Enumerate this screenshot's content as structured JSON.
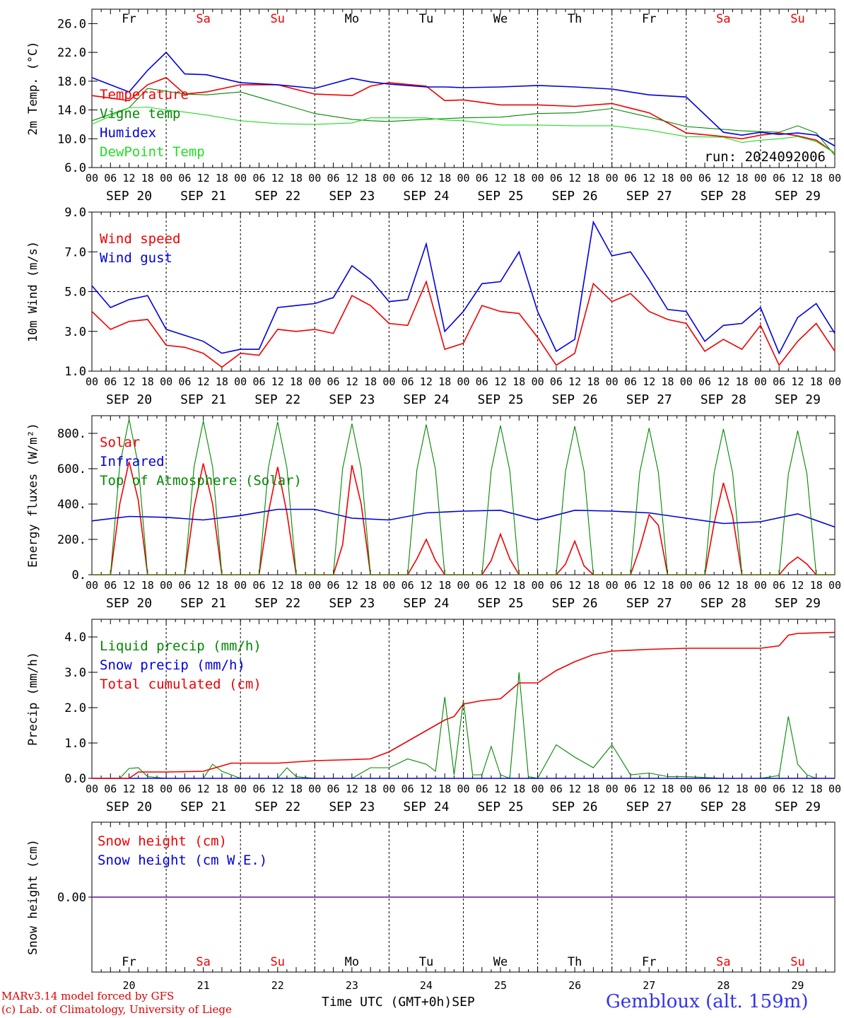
{
  "footer": {
    "credit_line1": "MARv3.14 model forced by GFS",
    "credit_line2": "(c) Lab. of Climatology, University of Liege",
    "xaxis_title": "Time UTC (GMT+0h)",
    "month": "SEP",
    "station": "Gembloux (alt. 159m)",
    "run_label": "run: 2024092006"
  },
  "colors": {
    "red": "#ee0000",
    "green": "#008800",
    "blue": "#0000dd",
    "lightgreen": "#22dd22",
    "purple": "#7733aa",
    "weekday": "#000000",
    "weekend": "#ee0000"
  },
  "days": [
    {
      "abbr": "Fr",
      "date": "SEP 20",
      "num": "20",
      "weekend": false
    },
    {
      "abbr": "Sa",
      "date": "SEP 21",
      "num": "21",
      "weekend": true
    },
    {
      "abbr": "Su",
      "date": "SEP 22",
      "num": "22",
      "weekend": true
    },
    {
      "abbr": "Mo",
      "date": "SEP 23",
      "num": "23",
      "weekend": false
    },
    {
      "abbr": "Tu",
      "date": "SEP 24",
      "num": "24",
      "weekend": false
    },
    {
      "abbr": "We",
      "date": "SEP 25",
      "num": "25",
      "weekend": false
    },
    {
      "abbr": "Th",
      "date": "SEP 26",
      "num": "26",
      "weekend": false
    },
    {
      "abbr": "Fr",
      "date": "SEP 27",
      "num": "27",
      "weekend": false
    },
    {
      "abbr": "Sa",
      "date": "SEP 28",
      "num": "28",
      "weekend": true
    },
    {
      "abbr": "Su",
      "date": "SEP 29",
      "num": "29",
      "weekend": true
    }
  ],
  "hour_ticks": [
    "00",
    "06",
    "12",
    "18"
  ],
  "end_tick": "00",
  "chart_data": [
    {
      "id": "temperature",
      "type": "line",
      "ylabel": "2m Temp. (°C)",
      "ylim": [
        6,
        28
      ],
      "yticks": [
        "6.0",
        "10.0",
        "14.0",
        "18.0",
        "22.0",
        "26.0"
      ],
      "x_unit": "hours since SEP 20 00 UTC",
      "show_day_abbr_top": true,
      "series": [
        {
          "name": "Temperature",
          "color": "red",
          "x": [
            0,
            12,
            18,
            24,
            30,
            37,
            48,
            60,
            72,
            84,
            90,
            96,
            108,
            114,
            120,
            132,
            144,
            156,
            168,
            180,
            192,
            204,
            210,
            216,
            222,
            228,
            234,
            240
          ],
          "y": [
            16,
            15.3,
            17.5,
            18.5,
            16.2,
            16.5,
            17.5,
            17.5,
            16.2,
            16,
            17.3,
            17.8,
            17.3,
            15.3,
            15.4,
            14.7,
            14.7,
            14.5,
            14.9,
            13.6,
            10.8,
            10.3,
            10,
            10.5,
            10.8,
            10.4,
            9.8,
            8
          ]
        },
        {
          "name": "Vigne temp",
          "color": "green",
          "x": [
            0,
            12,
            18,
            24,
            30,
            37,
            48,
            60,
            72,
            84,
            90,
            96,
            108,
            114,
            120,
            132,
            144,
            156,
            168,
            180,
            192,
            204,
            210,
            216,
            222,
            228,
            234,
            240
          ],
          "y": [
            12.5,
            14.3,
            17,
            16.6,
            16.2,
            16.1,
            16.5,
            15,
            13.5,
            12.7,
            12.5,
            12.4,
            12.7,
            12.8,
            12.9,
            13,
            13.5,
            13.6,
            14.2,
            13,
            11.7,
            11.3,
            11.1,
            11,
            10.9,
            11.8,
            10.8,
            7.7
          ]
        },
        {
          "name": "Humidex",
          "color": "blue",
          "x": [
            0,
            12,
            18,
            24,
            30,
            37,
            48,
            60,
            72,
            84,
            90,
            96,
            108,
            114,
            120,
            132,
            144,
            156,
            168,
            180,
            192,
            204,
            210,
            216,
            222,
            228,
            234,
            240
          ],
          "y": [
            18.5,
            16.5,
            19.5,
            22,
            19,
            18.9,
            17.8,
            17.5,
            17,
            18.4,
            17.9,
            17.6,
            17.2,
            17.2,
            17.1,
            17.2,
            17.4,
            17.2,
            16.9,
            16.1,
            15.8,
            10.9,
            10.5,
            10.9,
            10.6,
            10.8,
            10.5,
            9
          ]
        },
        {
          "name": "DewPoint Temp",
          "color": "lightgreen",
          "x": [
            0,
            12,
            18,
            24,
            30,
            37,
            48,
            60,
            72,
            84,
            90,
            96,
            108,
            114,
            120,
            132,
            144,
            156,
            168,
            180,
            192,
            204,
            210,
            216,
            222,
            228,
            234,
            240
          ],
          "y": [
            12,
            14.3,
            14.4,
            14,
            13.7,
            13.3,
            12.5,
            12.1,
            12,
            12.2,
            12.9,
            12.9,
            12.9,
            12.6,
            12.5,
            11.9,
            11.9,
            11.8,
            11.8,
            11.2,
            10.3,
            10.2,
            9.5,
            9.8,
            10,
            10.3,
            9.6,
            8
          ]
        }
      ]
    },
    {
      "id": "wind",
      "type": "line",
      "ylabel": "10m Wind (m/s)",
      "ylim": [
        1,
        9
      ],
      "yticks": [
        "1.0",
        "3.0",
        "5.0",
        "7.0",
        "9.0"
      ],
      "reference_line": 5,
      "series": [
        {
          "name": "Wind speed",
          "color": "red",
          "x": [
            0,
            6,
            12,
            18,
            24,
            30,
            36,
            42,
            48,
            54,
            60,
            66,
            72,
            78,
            84,
            90,
            96,
            102,
            108,
            114,
            120,
            126,
            132,
            138,
            144,
            150,
            156,
            162,
            168,
            174,
            180,
            186,
            192,
            198,
            204,
            210,
            216,
            222,
            228,
            234,
            240
          ],
          "y": [
            4,
            3.1,
            3.5,
            3.6,
            2.3,
            2.2,
            1.9,
            1.2,
            1.9,
            1.8,
            3.1,
            3,
            3.1,
            2.9,
            4.8,
            4.3,
            3.4,
            3.3,
            5.5,
            2.1,
            2.4,
            4.3,
            4,
            3.9,
            2.7,
            1.3,
            1.9,
            5.4,
            4.5,
            4.9,
            4,
            3.6,
            3.4,
            2,
            2.6,
            2.1,
            3.3,
            1.3,
            2.5,
            3.4,
            2
          ]
        },
        {
          "name": "Wind gust",
          "color": "blue",
          "x": [
            0,
            6,
            12,
            18,
            24,
            30,
            36,
            42,
            48,
            54,
            60,
            66,
            72,
            78,
            84,
            90,
            96,
            102,
            108,
            114,
            120,
            126,
            132,
            138,
            144,
            150,
            156,
            162,
            168,
            174,
            180,
            186,
            192,
            198,
            204,
            210,
            216,
            222,
            228,
            234,
            240
          ],
          "y": [
            5.3,
            4.2,
            4.6,
            4.8,
            3.1,
            2.8,
            2.5,
            1.9,
            2.1,
            2.1,
            4.2,
            4.3,
            4.4,
            4.7,
            6.3,
            5.6,
            4.5,
            4.6,
            7.4,
            3,
            4,
            5.4,
            5.5,
            7,
            4,
            2,
            2.6,
            8.5,
            6.8,
            7,
            5.6,
            4.1,
            4,
            2.5,
            3.3,
            3.4,
            4.2,
            1.9,
            3.7,
            4.4,
            2.9
          ]
        }
      ]
    },
    {
      "id": "energy",
      "type": "line",
      "ylabel": "Energy fluxes (W/m²)",
      "ylim": [
        0,
        900
      ],
      "yticks": [
        "0.",
        "200.",
        "400.",
        "600.",
        "800."
      ],
      "series": [
        {
          "name": "Solar",
          "color": "red",
          "x": [
            0,
            6,
            9,
            12,
            15,
            18,
            24,
            30,
            33,
            36,
            39,
            42,
            48,
            54,
            57,
            60,
            63,
            66,
            72,
            78,
            81,
            84,
            87,
            90,
            96,
            102,
            105,
            108,
            111,
            114,
            120,
            126,
            129,
            132,
            135,
            138,
            144,
            150,
            153,
            156,
            159,
            162,
            168,
            174,
            177,
            180,
            183,
            186,
            192,
            198,
            201,
            204,
            207,
            210,
            216,
            222,
            225,
            228,
            231,
            234,
            240
          ],
          "y": [
            0,
            0,
            400,
            640,
            420,
            0,
            0,
            0,
            380,
            630,
            400,
            0,
            0,
            0,
            350,
            610,
            350,
            0,
            0,
            0,
            170,
            620,
            400,
            0,
            0,
            0,
            90,
            200,
            80,
            0,
            0,
            0,
            80,
            230,
            90,
            0,
            0,
            0,
            60,
            190,
            50,
            0,
            0,
            0,
            150,
            340,
            280,
            0,
            0,
            0,
            290,
            520,
            330,
            0,
            0,
            0,
            60,
            100,
            60,
            0,
            0
          ]
        },
        {
          "name": "Infrared",
          "color": "blue",
          "x": [
            0,
            12,
            24,
            36,
            48,
            60,
            72,
            84,
            96,
            108,
            120,
            132,
            144,
            156,
            168,
            180,
            192,
            204,
            216,
            228,
            240
          ],
          "y": [
            305,
            330,
            325,
            310,
            335,
            370,
            370,
            320,
            310,
            350,
            360,
            365,
            310,
            365,
            360,
            350,
            320,
            290,
            300,
            345,
            270
          ]
        },
        {
          "name": "Top of Atmosphere (Solar)",
          "color": "green",
          "x": [
            0,
            6,
            9,
            12,
            15,
            18,
            24,
            30,
            33,
            36,
            39,
            42,
            48,
            54,
            57,
            60,
            63,
            66,
            72,
            78,
            81,
            84,
            87,
            90,
            96,
            102,
            105,
            108,
            111,
            114,
            120,
            126,
            129,
            132,
            135,
            138,
            144,
            150,
            153,
            156,
            159,
            162,
            168,
            174,
            177,
            180,
            183,
            186,
            192,
            198,
            201,
            204,
            207,
            210,
            216,
            222,
            225,
            228,
            231,
            234,
            240
          ],
          "y": [
            0,
            0,
            620,
            880,
            620,
            0,
            0,
            0,
            610,
            870,
            610,
            0,
            0,
            0,
            605,
            865,
            605,
            0,
            0,
            0,
            600,
            855,
            600,
            0,
            0,
            0,
            595,
            850,
            595,
            0,
            0,
            0,
            590,
            845,
            590,
            0,
            0,
            0,
            585,
            840,
            585,
            0,
            0,
            0,
            580,
            830,
            580,
            0,
            0,
            0,
            575,
            825,
            575,
            0,
            0,
            0,
            570,
            815,
            570,
            0,
            0
          ]
        }
      ]
    },
    {
      "id": "precip",
      "type": "line",
      "ylabel": "Precip (mm/h)",
      "ylim": [
        0,
        4.5
      ],
      "yticks": [
        "0.0",
        "1.0",
        "2.0",
        "3.0",
        "4.0"
      ],
      "series": [
        {
          "name": "Liquid precip (mm/h)",
          "color": "green",
          "x": [
            0,
            9,
            12,
            15,
            18,
            24,
            36,
            39,
            42,
            48,
            60,
            63,
            66,
            72,
            84,
            90,
            96,
            102,
            108,
            111,
            114,
            117,
            120,
            123,
            126,
            129,
            132,
            135,
            138,
            141,
            144,
            150,
            156,
            162,
            168,
            174,
            180,
            186,
            192,
            204,
            216,
            222,
            225,
            228,
            231,
            234,
            240
          ],
          "y": [
            0,
            0,
            0.28,
            0.3,
            0.05,
            0,
            0,
            0.4,
            0.2,
            0,
            0,
            0.3,
            0.05,
            0,
            0,
            0.3,
            0.3,
            0.55,
            0.4,
            0.2,
            2.3,
            0.1,
            2.2,
            0.1,
            0.1,
            0.9,
            0.1,
            0,
            3,
            0.05,
            0,
            0.95,
            0.6,
            0.3,
            0.95,
            0.1,
            0.15,
            0.05,
            0.05,
            0,
            0,
            0.08,
            1.75,
            0.4,
            0.1,
            0,
            0
          ]
        },
        {
          "name": "Snow precip (mm/h)",
          "color": "blue",
          "x": [
            0,
            240
          ],
          "y": [
            0,
            0
          ]
        },
        {
          "name": "Total cumulated (cm)",
          "color": "red",
          "x": [
            0,
            12,
            15,
            24,
            36,
            45,
            60,
            72,
            84,
            90,
            96,
            102,
            108,
            114,
            117,
            120,
            126,
            132,
            138,
            144,
            150,
            156,
            162,
            168,
            180,
            192,
            204,
            216,
            222,
            225,
            228,
            240
          ],
          "y": [
            0,
            0,
            0.18,
            0.18,
            0.2,
            0.43,
            0.43,
            0.5,
            0.53,
            0.55,
            0.75,
            1.05,
            1.35,
            1.65,
            1.75,
            2.1,
            2.2,
            2.25,
            2.7,
            2.7,
            3.05,
            3.3,
            3.5,
            3.6,
            3.65,
            3.68,
            3.68,
            3.68,
            3.75,
            4.05,
            4.1,
            4.13
          ]
        }
      ]
    },
    {
      "id": "snow",
      "type": "line",
      "ylabel": "Snow height (cm)",
      "ylim": [
        -1,
        1
      ],
      "yticks": [
        "0.00"
      ],
      "show_day_abbr_bottom": true,
      "series": [
        {
          "name": "Snow height (cm)",
          "color": "red",
          "x": [
            0,
            240
          ],
          "y": [
            0,
            0
          ]
        },
        {
          "name": "Snow height (cm W.E.)",
          "color": "blue",
          "x": [
            0,
            240
          ],
          "y": [
            0,
            0
          ]
        }
      ]
    }
  ]
}
